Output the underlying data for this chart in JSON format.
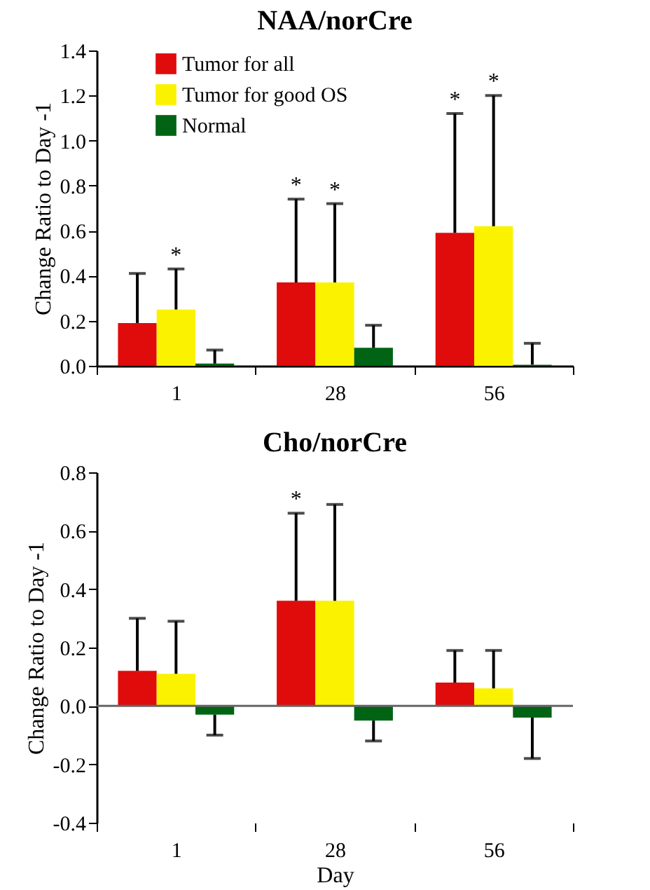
{
  "chart_data": [
    {
      "type": "bar",
      "title": "NAA/norCre",
      "ylabel": "Change Ratio to Day -1",
      "categories": [
        "1",
        "28",
        "56"
      ],
      "ylim": [
        0,
        1.4
      ],
      "yticks": [
        {
          "value": 0,
          "label": "0.0"
        },
        {
          "value": 0.2,
          "label": "0.2"
        },
        {
          "value": 0.4,
          "label": "0.4"
        },
        {
          "value": 0.6,
          "label": "0.6"
        },
        {
          "value": 0.8,
          "label": "0.8"
        },
        {
          "value": 1,
          "label": "1.0"
        },
        {
          "value": 1.2,
          "label": "1.2"
        },
        {
          "value": 1.4,
          "label": "1.4"
        }
      ],
      "legend": "top left",
      "grid": false,
      "series": [
        {
          "name": "Tumor for all",
          "color": "#e00c0c",
          "values": [
            0.19,
            0.37,
            0.59
          ],
          "errors": [
            [
              0.19,
              0.41
            ],
            [
              0.37,
              0.74
            ],
            [
              0.59,
              1.12
            ]
          ]
        },
        {
          "name": "Tumor for good OS",
          "color": "#fbf200",
          "values": [
            0.25,
            0.37,
            0.62
          ],
          "errors": [
            [
              0.25,
              0.43
            ],
            [
              0.37,
              0.72
            ],
            [
              0.62,
              1.2
            ]
          ]
        },
        {
          "name": "Normal",
          "color": "#006414",
          "values": [
            0.01,
            0.08,
            0.005
          ],
          "errors": [
            [
              0.01,
              0.07
            ],
            [
              0.08,
              0.18
            ],
            [
              0.005,
              0.1
            ]
          ]
        }
      ],
      "annotations": [
        {
          "text": "*",
          "x": "1",
          "y": 0.43
        },
        {
          "text": "*",
          "x": "28",
          "y": 0.74
        },
        {
          "text": "*",
          "x": "28",
          "y": 0.72
        },
        {
          "text": "*",
          "x": "56",
          "y": 1.12
        },
        {
          "text": "*",
          "x": "56",
          "y": 1.2
        }
      ]
    },
    {
      "type": "bar",
      "title": "Cho/norCre",
      "ylabel": "Change Ratio to Day -1",
      "xlabel": "Day",
      "categories": [
        "1",
        "28",
        "56"
      ],
      "ylim": [
        -0.4,
        0.8
      ],
      "yticks": [
        {
          "value": -0.4,
          "label": "-0.4"
        },
        {
          "value": -0.2,
          "label": "-0.2"
        },
        {
          "value": 0,
          "label": "0.0"
        },
        {
          "value": 0.2,
          "label": "0.2"
        },
        {
          "value": 0.4,
          "label": "0.4"
        },
        {
          "value": 0.6,
          "label": "0.6"
        },
        {
          "value": 0.8,
          "label": "0.8"
        }
      ],
      "grid": false,
      "ref_lines": [
        {
          "axis": "y",
          "value": 0
        }
      ],
      "series": [
        {
          "name": "Tumor for all",
          "color": "#e00c0c",
          "values": [
            0.12,
            0.36,
            0.08
          ],
          "errors": [
            [
              0.12,
              0.3
            ],
            [
              0.36,
              0.66
            ],
            [
              0.08,
              0.19
            ]
          ]
        },
        {
          "name": "Tumor for good OS",
          "color": "#fbf200",
          "values": [
            0.11,
            0.36,
            0.06
          ],
          "errors": [
            [
              0.11,
              0.29
            ],
            [
              0.36,
              0.69
            ],
            [
              0.06,
              0.19
            ]
          ]
        },
        {
          "name": "Normal",
          "color": "#006414",
          "values": [
            -0.03,
            -0.05,
            -0.04
          ],
          "errors": [
            [
              -0.1,
              -0.03
            ],
            [
              -0.12,
              -0.05
            ],
            [
              -0.18,
              -0.04
            ]
          ]
        }
      ],
      "annotations": [
        {
          "text": "*",
          "x": "28",
          "y": 0.66
        }
      ]
    }
  ]
}
